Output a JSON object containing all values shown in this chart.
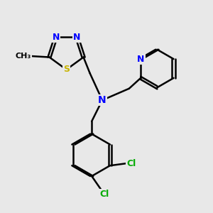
{
  "background_color": "#e8e8e8",
  "bond_color": "#000000",
  "N_color": "#0000ff",
  "S_color": "#c8b400",
  "Cl_color": "#00aa00",
  "xlim": [
    0,
    10
  ],
  "ylim": [
    0,
    10
  ],
  "figsize": [
    3.0,
    3.0
  ],
  "dpi": 100
}
